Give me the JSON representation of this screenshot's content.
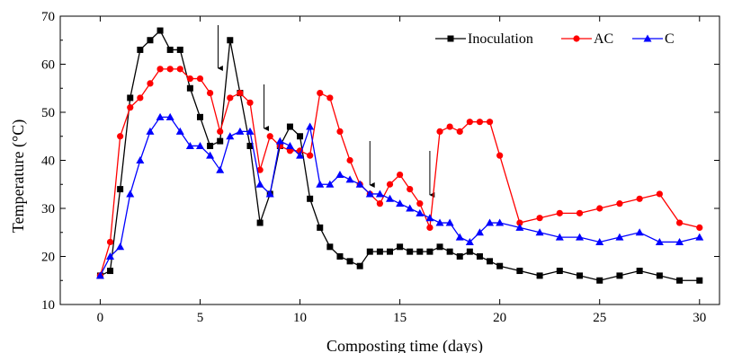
{
  "chart_data": {
    "type": "line",
    "title": "",
    "xlabel": "Composting time (days)",
    "ylabel": "Temperature (°C)",
    "xlim": [
      -2,
      31
    ],
    "ylim": [
      10,
      70
    ],
    "xticks": [
      0,
      5,
      10,
      15,
      20,
      25,
      30
    ],
    "yticks": [
      10,
      20,
      30,
      40,
      50,
      60,
      70
    ],
    "grid": false,
    "legend_position": "top-right",
    "arrows_at_day": [
      5.9,
      8.2,
      13.5,
      16.5
    ],
    "series": [
      {
        "name": "Inoculation",
        "color": "#000000",
        "marker": "square",
        "x": [
          0,
          0.5,
          1,
          1.5,
          2,
          2.5,
          3,
          3.5,
          4,
          4.5,
          5,
          5.5,
          6,
          6.5,
          7,
          7.5,
          8,
          8.5,
          9,
          9.5,
          10,
          10.5,
          11,
          11.5,
          12,
          12.5,
          13,
          13.5,
          14,
          14.5,
          15,
          15.5,
          16,
          16.5,
          17,
          17.5,
          18,
          18.5,
          19,
          19.5,
          20,
          21,
          22,
          23,
          24,
          25,
          26,
          27,
          28,
          29,
          30
        ],
        "y": [
          16,
          17,
          34,
          53,
          63,
          65,
          67,
          63,
          63,
          55,
          49,
          43,
          44,
          65,
          54,
          43,
          27,
          33,
          43,
          47,
          45,
          32,
          26,
          22,
          20,
          19,
          18,
          21,
          21,
          21,
          22,
          21,
          21,
          21,
          22,
          21,
          20,
          21,
          20,
          19,
          18,
          17,
          16,
          17,
          16,
          15,
          16,
          17,
          16,
          15,
          15
        ]
      },
      {
        "name": "AC",
        "color": "#ff0000",
        "marker": "circle",
        "x": [
          0,
          0.5,
          1,
          1.5,
          2,
          2.5,
          3,
          3.5,
          4,
          4.5,
          5,
          5.5,
          6,
          6.5,
          7,
          7.5,
          8,
          8.5,
          9,
          9.5,
          10,
          10.5,
          11,
          11.5,
          12,
          12.5,
          13,
          13.5,
          14,
          14.5,
          15,
          15.5,
          16,
          16.5,
          17,
          17.5,
          18,
          18.5,
          19,
          19.5,
          20,
          21,
          22,
          23,
          24,
          25,
          26,
          27,
          28,
          29,
          30
        ],
        "y": [
          16,
          23,
          45,
          51,
          53,
          56,
          59,
          59,
          59,
          57,
          57,
          54,
          46,
          53,
          54,
          52,
          38,
          45,
          43,
          42,
          42,
          41,
          54,
          53,
          46,
          40,
          35,
          33,
          31,
          35,
          37,
          34,
          31,
          26,
          46,
          47,
          46,
          48,
          48,
          48,
          41,
          27,
          28,
          29,
          29,
          30,
          31,
          32,
          33,
          27,
          26
        ]
      },
      {
        "name": "C",
        "color": "#0000ff",
        "marker": "triangle",
        "x": [
          0,
          0.5,
          1,
          1.5,
          2,
          2.5,
          3,
          3.5,
          4,
          4.5,
          5,
          5.5,
          6,
          6.5,
          7,
          7.5,
          8,
          8.5,
          9,
          9.5,
          10,
          10.5,
          11,
          11.5,
          12,
          12.5,
          13,
          13.5,
          14,
          14.5,
          15,
          15.5,
          16,
          16.5,
          17,
          17.5,
          18,
          18.5,
          19,
          19.5,
          20,
          21,
          22,
          23,
          24,
          25,
          26,
          27,
          28,
          29,
          30
        ],
        "y": [
          16,
          20,
          22,
          33,
          40,
          46,
          49,
          49,
          46,
          43,
          43,
          41,
          38,
          45,
          46,
          46,
          35,
          33,
          44,
          43,
          41,
          47,
          35,
          35,
          37,
          36,
          35,
          33,
          33,
          32,
          31,
          30,
          29,
          28,
          27,
          27,
          24,
          23,
          25,
          27,
          27,
          26,
          25,
          24,
          24,
          23,
          24,
          25,
          23,
          23,
          24
        ]
      }
    ]
  }
}
